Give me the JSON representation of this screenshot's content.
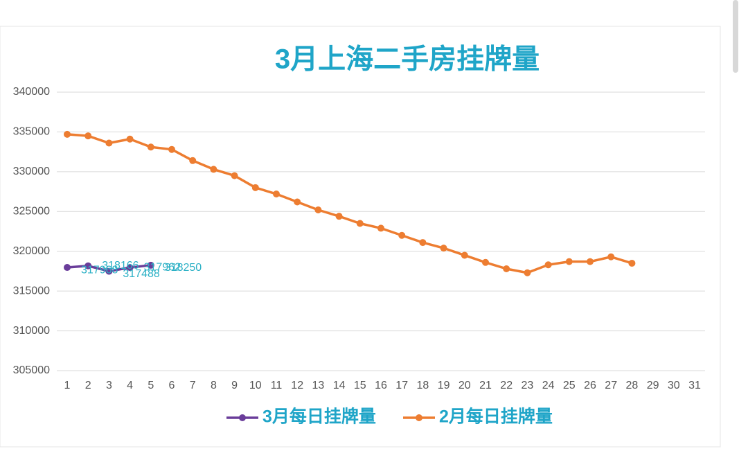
{
  "chart_data": {
    "type": "line",
    "title": "3月上海二手房挂牌量",
    "categories": [
      1,
      2,
      3,
      4,
      5,
      6,
      7,
      8,
      9,
      10,
      11,
      12,
      13,
      14,
      15,
      16,
      17,
      18,
      19,
      20,
      21,
      22,
      23,
      24,
      25,
      26,
      27,
      28,
      29,
      30,
      31
    ],
    "series": [
      {
        "name": "3月每日挂牌量",
        "color": "#6a3d9a",
        "data_labels": true,
        "values": [
          317968,
          318166,
          317488,
          317962,
          318250,
          null,
          null,
          null,
          null,
          null,
          null,
          null,
          null,
          null,
          null,
          null,
          null,
          null,
          null,
          null,
          null,
          null,
          null,
          null,
          null,
          null,
          null,
          null,
          null,
          null,
          null
        ]
      },
      {
        "name": "2月每日挂牌量",
        "color": "#ed7d31",
        "values": [
          334700,
          334500,
          333600,
          334100,
          333100,
          332800,
          331400,
          330300,
          329500,
          328000,
          327200,
          326200,
          325200,
          324400,
          323500,
          322900,
          322000,
          321100,
          320400,
          319500,
          318600,
          317800,
          317300,
          318300,
          318700,
          318700,
          319300,
          318500,
          null,
          null,
          null
        ]
      }
    ],
    "ylim": [
      305000,
      340000
    ],
    "yticks": [
      305000,
      310000,
      315000,
      320000,
      325000,
      330000,
      335000,
      340000
    ],
    "grid": true,
    "legend": "bottom"
  }
}
